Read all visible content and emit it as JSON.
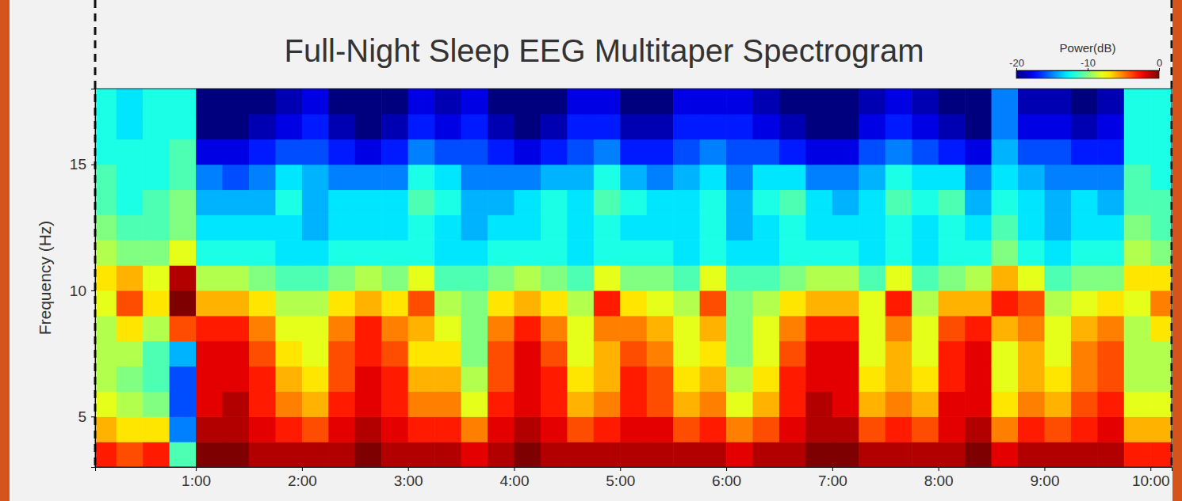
{
  "chart_data": {
    "type": "heatmap",
    "title": "Full-Night Sleep EEG Multitaper Spectrogram",
    "y_label": "Frequency (Hz)",
    "color": "jet",
    "xlim": [
      0.05,
      10.2
    ],
    "xticks": [
      {
        "value": 1,
        "label": "1:00"
      },
      {
        "value": 2,
        "label": "2:00"
      },
      {
        "value": 3,
        "label": "3:00"
      },
      {
        "value": 4,
        "label": "4:00"
      },
      {
        "value": 5,
        "label": "5:00"
      },
      {
        "value": 6,
        "label": "6:00"
      },
      {
        "value": 7,
        "label": "7:00"
      },
      {
        "value": 8,
        "label": "8:00"
      },
      {
        "value": 9,
        "label": "9:00"
      },
      {
        "value": 10,
        "label": "10:00"
      }
    ],
    "ylim": [
      3,
      18
    ],
    "yticks": [
      5,
      10,
      15
    ],
    "colorbar": {
      "label": "Power(dB)",
      "range": [
        -20,
        0
      ],
      "ticks": [
        -20,
        -10,
        0
      ]
    },
    "x": [
      0.125,
      0.375,
      0.625,
      0.875,
      1.125,
      1.375,
      1.625,
      1.875,
      2.125,
      2.375,
      2.625,
      2.875,
      3.125,
      3.375,
      3.625,
      3.875,
      4.125,
      4.375,
      4.625,
      4.875,
      5.125,
      5.375,
      5.625,
      5.875,
      6.125,
      6.375,
      6.625,
      6.875,
      7.125,
      7.375,
      7.625,
      7.875,
      8.125,
      8.375,
      8.625,
      8.875,
      9.125,
      9.375,
      9.625,
      9.875,
      10.125
    ],
    "y": [
      3.5,
      4.5,
      5.5,
      6.5,
      7.5,
      8.5,
      9.5,
      10.5,
      11.5,
      12.5,
      13.5,
      14.5,
      15.5,
      16.5,
      17.5
    ],
    "values": [
      [
        -3,
        -6,
        -8,
        -9,
        -9,
        -9,
        -8,
        -7,
        -9,
        -10,
        -11,
        -11,
        -12,
        -12,
        -12
      ],
      [
        -4,
        -7,
        -9,
        -10,
        -9,
        -7,
        -4,
        -6,
        -10,
        -11,
        -12,
        -12,
        -12,
        -13,
        -13
      ],
      [
        -3,
        -7,
        -10,
        -11,
        -11,
        -9,
        -7,
        -8,
        -10,
        -11,
        -11,
        -12,
        -12,
        -12,
        -12
      ],
      [
        -11,
        -15,
        -16,
        -16,
        -14,
        -4,
        0,
        -1,
        -8,
        -10,
        -10,
        -11,
        -11,
        -12,
        -12
      ],
      [
        0,
        -1,
        -2,
        -2,
        -2,
        -3,
        -6,
        -9,
        -12,
        -13,
        -14,
        -15,
        -18,
        -20,
        -20
      ],
      [
        0,
        -1,
        -1,
        -2,
        -2,
        -3,
        -6,
        -9,
        -12,
        -13,
        -14,
        -16,
        -18,
        -20,
        -20
      ],
      [
        -1,
        -2,
        -3,
        -3,
        -4,
        -5,
        -7,
        -10,
        -12,
        -13,
        -14,
        -15,
        -17,
        -19,
        -20
      ],
      [
        -1,
        -3,
        -5,
        -6,
        -7,
        -8,
        -9,
        -11,
        -13,
        -13,
        -12,
        -13,
        -16,
        -18,
        -19
      ],
      [
        -1,
        -4,
        -6,
        -7,
        -8,
        -8,
        -9,
        -11,
        -13,
        -14,
        -14,
        -14,
        -16,
        -17,
        -18
      ],
      [
        -1,
        -2,
        -3,
        -4,
        -4,
        -5,
        -7,
        -10,
        -12,
        -13,
        -13,
        -15,
        -17,
        -19,
        -20
      ],
      [
        0,
        -1,
        -2,
        -2,
        -3,
        -3,
        -6,
        -9,
        -12,
        -13,
        -13,
        -15,
        -18,
        -20,
        -20
      ],
      [
        -1,
        -2,
        -3,
        -3,
        -4,
        -5,
        -7,
        -10,
        -12,
        -13,
        -13,
        -15,
        -17,
        -19,
        -20
      ],
      [
        -1,
        -3,
        -5,
        -6,
        -7,
        -6,
        -4,
        -8,
        -12,
        -12,
        -11,
        -12,
        -15,
        -17,
        -18
      ],
      [
        -1,
        -3,
        -5,
        -6,
        -7,
        -8,
        -9,
        -11,
        -13,
        -13,
        -12,
        -13,
        -16,
        -18,
        -19
      ],
      [
        -2,
        -5,
        -8,
        -9,
        -10,
        -10,
        -10,
        -11,
        -13,
        -14,
        -14,
        -15,
        -16,
        -17,
        -18
      ],
      [
        -1,
        -2,
        -3,
        -4,
        -4,
        -5,
        -7,
        -10,
        -12,
        -13,
        -14,
        -15,
        -17,
        -19,
        -20
      ],
      [
        0,
        -1,
        -2,
        -2,
        -2,
        -3,
        -6,
        -9,
        -12,
        -13,
        -13,
        -15,
        -18,
        -20,
        -20
      ],
      [
        -1,
        -2,
        -3,
        -3,
        -4,
        -5,
        -7,
        -10,
        -12,
        -12,
        -12,
        -14,
        -17,
        -19,
        -20
      ],
      [
        -1,
        -4,
        -6,
        -7,
        -8,
        -8,
        -9,
        -11,
        -13,
        -13,
        -13,
        -14,
        -16,
        -17,
        -18
      ],
      [
        -1,
        -3,
        -5,
        -6,
        -6,
        -5,
        -3,
        -8,
        -12,
        -12,
        -11,
        -12,
        -15,
        -17,
        -18
      ],
      [
        -1,
        -2,
        -3,
        -3,
        -4,
        -5,
        -7,
        -10,
        -12,
        -13,
        -12,
        -14,
        -17,
        -19,
        -20
      ],
      [
        -1,
        -2,
        -4,
        -4,
        -5,
        -6,
        -8,
        -10,
        -12,
        -13,
        -13,
        -15,
        -17,
        -19,
        -20
      ],
      [
        -1,
        -4,
        -6,
        -7,
        -8,
        -8,
        -9,
        -11,
        -13,
        -13,
        -13,
        -14,
        -16,
        -17,
        -18
      ],
      [
        -1,
        -3,
        -5,
        -6,
        -7,
        -6,
        -4,
        -8,
        -12,
        -12,
        -12,
        -13,
        -15,
        -17,
        -18
      ],
      [
        -2,
        -5,
        -8,
        -9,
        -10,
        -10,
        -10,
        -11,
        -13,
        -14,
        -14,
        -15,
        -16,
        -17,
        -18
      ],
      [
        -1,
        -4,
        -6,
        -7,
        -8,
        -8,
        -9,
        -11,
        -13,
        -13,
        -12,
        -13,
        -16,
        -18,
        -19
      ],
      [
        -1,
        -2,
        -3,
        -3,
        -4,
        -5,
        -7,
        -10,
        -12,
        -12,
        -11,
        -13,
        -17,
        -19,
        -20
      ],
      [
        0,
        -1,
        -1,
        -2,
        -2,
        -3,
        -6,
        -9,
        -12,
        -13,
        -13,
        -15,
        -18,
        -20,
        -20
      ],
      [
        0,
        -1,
        -2,
        -2,
        -2,
        -3,
        -6,
        -9,
        -12,
        -13,
        -14,
        -15,
        -18,
        -20,
        -20
      ],
      [
        -1,
        -4,
        -6,
        -7,
        -8,
        -8,
        -8,
        -11,
        -13,
        -13,
        -13,
        -14,
        -16,
        -18,
        -19
      ],
      [
        -1,
        -3,
        -5,
        -6,
        -6,
        -5,
        -3,
        -8,
        -12,
        -12,
        -11,
        -12,
        -15,
        -17,
        -18
      ],
      [
        -1,
        -4,
        -6,
        -7,
        -8,
        -8,
        -9,
        -11,
        -13,
        -13,
        -12,
        -13,
        -16,
        -18,
        -19
      ],
      [
        -1,
        -2,
        -2,
        -3,
        -3,
        -4,
        -6,
        -10,
        -12,
        -12,
        -11,
        -13,
        -17,
        -19,
        -20
      ],
      [
        0,
        -1,
        -2,
        -2,
        -2,
        -3,
        -6,
        -9,
        -12,
        -13,
        -14,
        -15,
        -18,
        -20,
        -20
      ],
      [
        -2,
        -5,
        -7,
        -8,
        -8,
        -6,
        -3,
        -6,
        -10,
        -11,
        -12,
        -13,
        -14,
        -15,
        -15
      ],
      [
        -1,
        -3,
        -5,
        -6,
        -6,
        -5,
        -4,
        -8,
        -12,
        -13,
        -13,
        -14,
        -16,
        -18,
        -19
      ],
      [
        -1,
        -4,
        -6,
        -7,
        -8,
        -8,
        -9,
        -11,
        -13,
        -14,
        -14,
        -15,
        -16,
        -18,
        -19
      ],
      [
        -1,
        -3,
        -4,
        -5,
        -5,
        -6,
        -8,
        -10,
        -12,
        -13,
        -13,
        -15,
        -17,
        -19,
        -20
      ],
      [
        -1,
        -2,
        -3,
        -4,
        -4,
        -5,
        -7,
        -10,
        -12,
        -13,
        -14,
        -15,
        -17,
        -18,
        -19
      ],
      [
        -3,
        -6,
        -8,
        -9,
        -9,
        -9,
        -8,
        -7,
        -9,
        -10,
        -11,
        -11,
        -12,
        -12,
        -12
      ],
      [
        -3,
        -6,
        -8,
        -9,
        -9,
        -7,
        -5,
        -7,
        -10,
        -11,
        -11,
        -12,
        -12,
        -12,
        -12
      ]
    ]
  }
}
